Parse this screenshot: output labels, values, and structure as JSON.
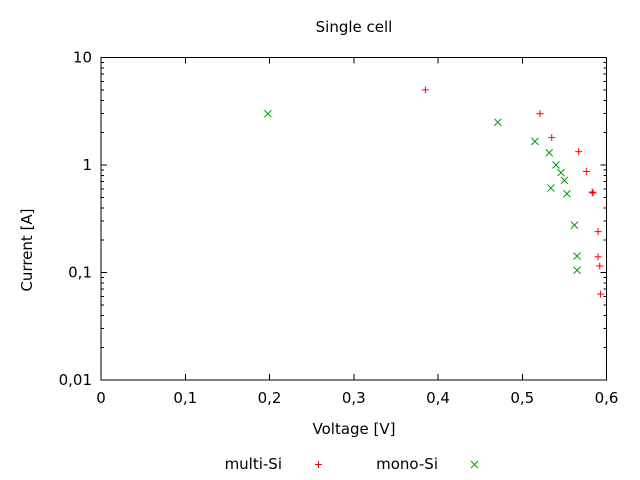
{
  "window": {
    "background_color": "#ffffff",
    "text_color": "#000000"
  },
  "chart_data": {
    "type": "scatter",
    "title": "Single cell",
    "xlabel": "Voltage [V]",
    "ylabel": "Current [A]",
    "xlim": [
      0,
      0.6
    ],
    "ylim": [
      0.01,
      10
    ],
    "x_scale": "linear",
    "y_scale": "log",
    "grid": false,
    "axis_color": "#000000",
    "decimal_separator": ",",
    "legend_position": "bottom-center",
    "x_ticks": {
      "values": [
        0,
        0.1,
        0.2,
        0.3,
        0.4,
        0.5,
        0.6
      ],
      "labels": [
        "0",
        "0,1",
        "0,2",
        "0,3",
        "0,4",
        "0,5",
        "0,6"
      ]
    },
    "y_ticks": {
      "values": [
        10,
        1,
        0.1,
        0.01
      ],
      "labels": [
        "10",
        "1",
        "0,1",
        "0,01"
      ]
    },
    "y_minor_ticks": "log-decade-2-to-9",
    "series": [
      {
        "name": "multi-Si",
        "marker": "plus",
        "color": "#ff0000",
        "points": [
          [
            0.385,
            5.0
          ],
          [
            0.521,
            3.0
          ],
          [
            0.535,
            1.8
          ],
          [
            0.567,
            1.33
          ],
          [
            0.576,
            0.87
          ],
          [
            0.583,
            0.56
          ],
          [
            0.584,
            0.55
          ],
          [
            0.59,
            0.24
          ],
          [
            0.59,
            0.14
          ],
          [
            0.592,
            0.115
          ],
          [
            0.593,
            0.063
          ]
        ]
      },
      {
        "name": "mono-Si",
        "marker": "cross",
        "color": "#00a000",
        "points": [
          [
            0.198,
            3.0
          ],
          [
            0.471,
            2.5
          ],
          [
            0.515,
            1.66
          ],
          [
            0.532,
            1.3
          ],
          [
            0.54,
            1.0
          ],
          [
            0.546,
            0.85
          ],
          [
            0.55,
            0.72
          ],
          [
            0.534,
            0.61
          ],
          [
            0.553,
            0.54
          ],
          [
            0.562,
            0.276
          ],
          [
            0.565,
            0.142
          ],
          [
            0.565,
            0.105
          ]
        ]
      }
    ]
  }
}
